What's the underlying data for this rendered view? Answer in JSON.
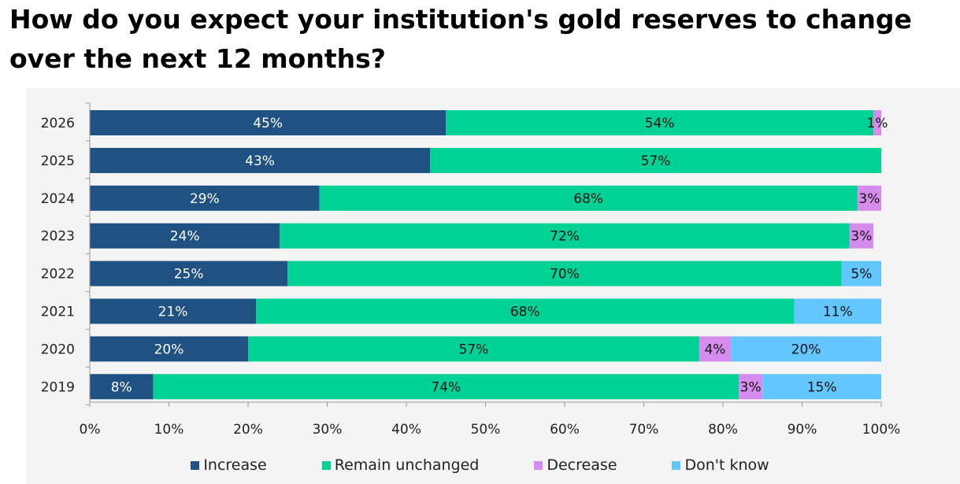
{
  "title": "How do you expect your institution's gold reserves to change over the next 12 months?",
  "colors": {
    "Increase": "#1f5283",
    "Remain unchanged": "#00d296",
    "Decrease": "#d68ced",
    "Don't know": "#63c6ff"
  },
  "chart_data": {
    "type": "bar",
    "orientation": "horizontal",
    "stacked": true,
    "categories": [
      "2026",
      "2025",
      "2024",
      "2023",
      "2022",
      "2021",
      "2020",
      "2019"
    ],
    "series": [
      {
        "name": "Increase",
        "values": [
          45,
          43,
          29,
          24,
          25,
          21,
          20,
          8
        ]
      },
      {
        "name": "Remain unchanged",
        "values": [
          54,
          57,
          68,
          72,
          70,
          68,
          57,
          74
        ]
      },
      {
        "name": "Decrease",
        "values": [
          1,
          0,
          3,
          3,
          0,
          0,
          4,
          3
        ]
      },
      {
        "name": "Don't know",
        "values": [
          0,
          0,
          0,
          0,
          5,
          11,
          20,
          15
        ]
      }
    ],
    "data_labels": [
      [
        "45%",
        "54%",
        "1%",
        ""
      ],
      [
        "43%",
        "57%",
        "",
        ""
      ],
      [
        "29%",
        "68%",
        "3%",
        ""
      ],
      [
        "24%",
        "72%",
        "3%",
        ""
      ],
      [
        "25%",
        "70%",
        "",
        "5%"
      ],
      [
        "21%",
        "68%",
        "",
        "11%"
      ],
      [
        "20%",
        "57%",
        "4%",
        "20%"
      ],
      [
        "8%",
        "74%",
        "3%",
        "15%"
      ]
    ],
    "xticks": [
      "0%",
      "10%",
      "20%",
      "30%",
      "40%",
      "50%",
      "60%",
      "70%",
      "80%",
      "90%",
      "100%"
    ],
    "xlim": [
      0,
      100
    ],
    "legend_position": "bottom",
    "grid": false
  }
}
